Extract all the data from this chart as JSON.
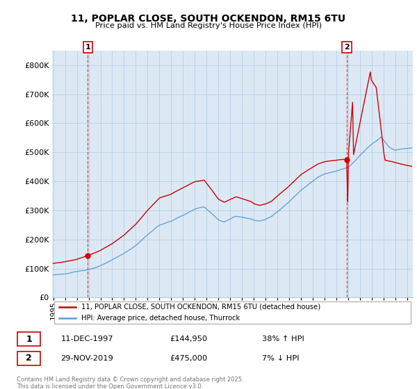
{
  "title": "11, POPLAR CLOSE, SOUTH OCKENDON, RM15 6TU",
  "subtitle": "Price paid vs. HM Land Registry's House Price Index (HPI)",
  "ylim": [
    0,
    850000
  ],
  "yticks": [
    0,
    100000,
    200000,
    300000,
    400000,
    500000,
    600000,
    700000,
    800000
  ],
  "ytick_labels": [
    "£0",
    "£100K",
    "£200K",
    "£300K",
    "£400K",
    "£500K",
    "£600K",
    "£700K",
    "£800K"
  ],
  "hpi_color": "#5b9bd5",
  "price_color": "#cc0000",
  "plot_bg_color": "#dce9f5",
  "background_color": "#ffffff",
  "grid_color": "#b0c8e0",
  "sale1_t": 1997.92,
  "sale1_y": 144950,
  "sale2_t": 2019.9,
  "sale2_y": 475000,
  "sale1_date": "11-DEC-1997",
  "sale1_price": "£144,950",
  "sale1_hpi": "38% ↑ HPI",
  "sale2_date": "29-NOV-2019",
  "sale2_price": "£475,000",
  "sale2_hpi": "7% ↓ HPI",
  "legend1": "11, POPLAR CLOSE, SOUTH OCKENDON, RM15 6TU (detached house)",
  "legend2": "HPI: Average price, detached house, Thurrock",
  "footer": "Contains HM Land Registry data © Crown copyright and database right 2025.\nThis data is licensed under the Open Government Licence v3.0.",
  "xmin": 1995.0,
  "xmax": 2025.4
}
